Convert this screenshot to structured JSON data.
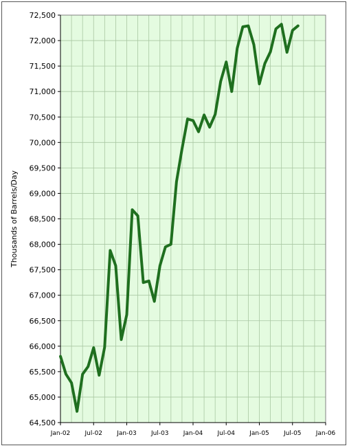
{
  "chart_data": {
    "type": "line",
    "title": "",
    "xlabel": "",
    "ylabel": "Thousands of Barrels/Day",
    "ylim": [
      64500,
      72500
    ],
    "y_ticks": [
      64500,
      65000,
      65500,
      66000,
      66500,
      67000,
      67500,
      68000,
      68500,
      69000,
      69500,
      70000,
      70500,
      71000,
      71500,
      72000,
      72500
    ],
    "y_tick_labels": [
      "64,500",
      "65,000",
      "65,500",
      "66,000",
      "66,500",
      "67,000",
      "67,500",
      "68,000",
      "68,500",
      "69,000",
      "69,500",
      "70,000",
      "70,500",
      "71,000",
      "71,500",
      "72,000",
      "72,500"
    ],
    "x_tick_labels": [
      "Jan-02",
      "Jul-02",
      "Jan-03",
      "Jul-03",
      "Jan-04",
      "Jul-04",
      "Jan-05",
      "Jul-05",
      "Jan-06"
    ],
    "grid": true,
    "legend": "none",
    "colors": {
      "plot_background": "#e4fbe0",
      "gridline": "#a9c7a2",
      "line": "#1f6f1f"
    },
    "series": [
      {
        "x": [
          "2002-01",
          "2002-02",
          "2002-03",
          "2002-04",
          "2002-05",
          "2002-06",
          "2002-07",
          "2002-08",
          "2002-09",
          "2002-10",
          "2002-11",
          "2002-12",
          "2003-01",
          "2003-02",
          "2003-03",
          "2003-04",
          "2003-05",
          "2003-06",
          "2003-07",
          "2003-08",
          "2003-09",
          "2003-10",
          "2003-11",
          "2003-12",
          "2004-01",
          "2004-02",
          "2004-03",
          "2004-04",
          "2004-05",
          "2004-06",
          "2004-07",
          "2004-08",
          "2004-09",
          "2004-10",
          "2004-11",
          "2004-12",
          "2005-01",
          "2005-02",
          "2005-03",
          "2005-04",
          "2005-05",
          "2005-06",
          "2005-07",
          "2005-08"
        ],
        "values": [
          65800,
          65450,
          65280,
          64720,
          65450,
          65600,
          65970,
          65430,
          65980,
          67880,
          67580,
          66130,
          66620,
          68680,
          68560,
          67250,
          67280,
          66880,
          67580,
          67950,
          68000,
          69230,
          69870,
          70460,
          70430,
          70210,
          70540,
          70300,
          70550,
          71200,
          71580,
          71000,
          71850,
          72270,
          72290,
          71920,
          71150,
          71550,
          71780,
          72230,
          72320,
          71770,
          72200,
          72290
        ]
      }
    ]
  }
}
